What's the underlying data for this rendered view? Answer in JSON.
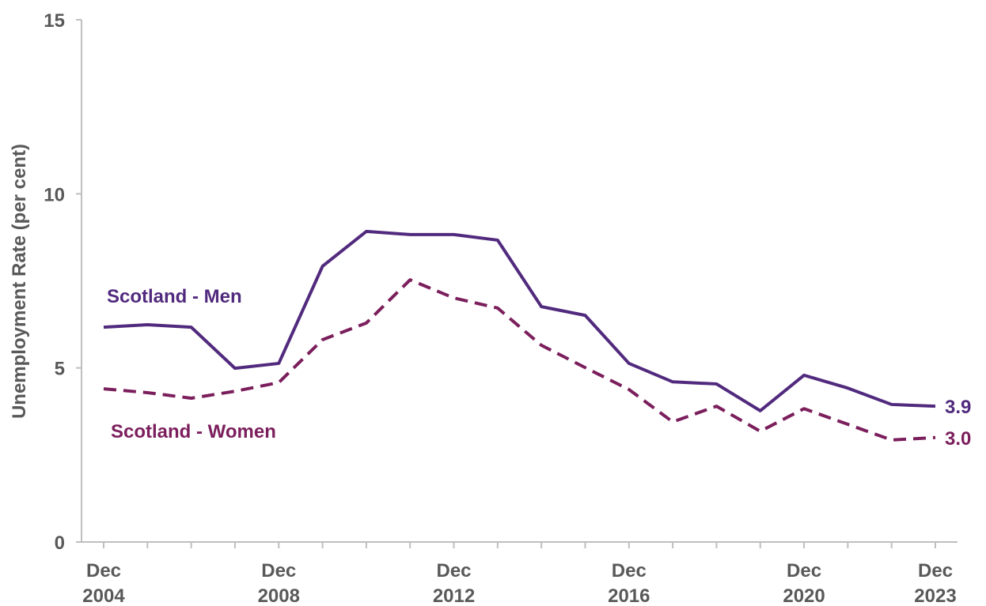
{
  "chart_data": {
    "type": "line",
    "y_label": "Unemployment Rate (per cent)",
    "categories": [
      "Dec 2004",
      null,
      null,
      null,
      "Dec 2008",
      null,
      null,
      null,
      "Dec 2012",
      null,
      null,
      null,
      "Dec 2016",
      null,
      null,
      null,
      "Dec 2020",
      null,
      null,
      "Dec 2023"
    ],
    "series": [
      {
        "name": "Scotland - Men",
        "color": "#512a7e",
        "dash": false,
        "values": [
          6.17,
          6.24,
          6.17,
          4.99,
          5.13,
          7.92,
          8.92,
          8.83,
          8.83,
          8.67,
          6.76,
          6.51,
          5.13,
          4.6,
          4.54,
          3.77,
          4.79,
          4.42,
          3.95,
          3.9
        ],
        "value_labels": [
          null,
          null,
          null,
          null,
          null,
          null,
          null,
          null,
          null,
          null,
          null,
          null,
          null,
          null,
          null,
          null,
          null,
          null,
          null,
          "3.9"
        ]
      },
      {
        "name": "Scotland - Women",
        "color": "#7b1e5c",
        "dash": true,
        "values": [
          4.4,
          4.29,
          4.13,
          4.33,
          4.58,
          5.81,
          6.29,
          7.53,
          7.01,
          6.72,
          5.65,
          5.01,
          4.38,
          3.45,
          3.9,
          3.18,
          3.83,
          3.38,
          2.93,
          3.0
        ],
        "value_labels": [
          null,
          null,
          null,
          null,
          null,
          null,
          null,
          null,
          null,
          null,
          null,
          null,
          null,
          null,
          null,
          null,
          null,
          null,
          null,
          "3.0"
        ]
      }
    ],
    "ylim": [
      0,
      15
    ],
    "yticks": [
      0,
      5,
      10,
      15
    ],
    "grid": false
  }
}
